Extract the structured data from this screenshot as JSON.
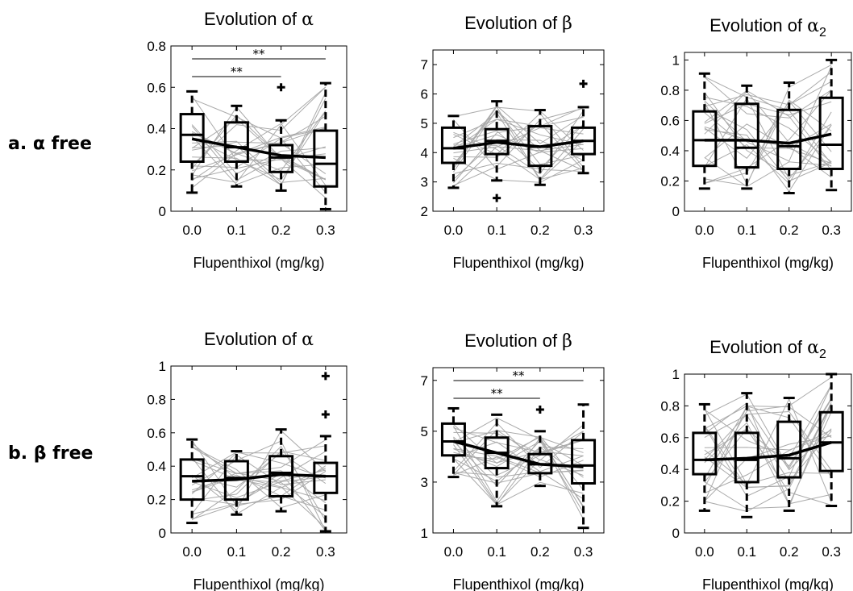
{
  "row_labels": [
    "a. α  free",
    "b. β free"
  ],
  "chart_data": [
    {
      "type": "box",
      "panel": "a-alpha",
      "title_main": "Evolution of ",
      "title_sym": "α",
      "title_sub": "",
      "xlabel": "Flupenthixol (mg/kg)",
      "categories": [
        "0.0",
        "0.1",
        "0.2",
        "0.3"
      ],
      "ylim": [
        0,
        0.8
      ],
      "yticks": [
        0,
        0.2,
        0.4,
        0.6,
        0.8
      ],
      "ytick_labels": [
        "0",
        "0.2",
        "0.4",
        "0.6",
        "0.8"
      ],
      "boxes": [
        {
          "whisker_low": 0.09,
          "q1": 0.24,
          "median": 0.37,
          "q3": 0.47,
          "whisker_high": 0.58,
          "outliers": []
        },
        {
          "whisker_low": 0.12,
          "q1": 0.24,
          "median": 0.31,
          "q3": 0.43,
          "whisker_high": 0.51,
          "outliers": []
        },
        {
          "whisker_low": 0.1,
          "q1": 0.19,
          "median": 0.26,
          "q3": 0.32,
          "whisker_high": 0.44,
          "outliers": [
            0.6
          ]
        },
        {
          "whisker_low": 0.01,
          "q1": 0.12,
          "median": 0.23,
          "q3": 0.39,
          "whisker_high": 0.62,
          "outliers": []
        }
      ],
      "mean_line": [
        0.35,
        0.31,
        0.27,
        0.26
      ],
      "significance": [
        {
          "from": 0,
          "to": 2,
          "label": "**"
        },
        {
          "from": 0,
          "to": 3,
          "label": "**"
        }
      ]
    },
    {
      "type": "box",
      "panel": "a-beta",
      "title_main": "Evolution of ",
      "title_sym": "β",
      "title_sub": "",
      "xlabel": "Flupenthixol (mg/kg)",
      "categories": [
        "0.0",
        "0.1",
        "0.2",
        "0.3"
      ],
      "ylim": [
        2,
        7.5
      ],
      "yticks": [
        2,
        3,
        4,
        5,
        6,
        7
      ],
      "ytick_labels": [
        "2",
        "3",
        "4",
        "5",
        "6",
        "7"
      ],
      "boxes": [
        {
          "whisker_low": 2.8,
          "q1": 3.65,
          "median": 4.15,
          "q3": 4.85,
          "whisker_high": 5.25,
          "outliers": []
        },
        {
          "whisker_low": 3.05,
          "q1": 3.95,
          "median": 4.4,
          "q3": 4.8,
          "whisker_high": 5.75,
          "outliers": [
            2.45
          ]
        },
        {
          "whisker_low": 2.9,
          "q1": 3.55,
          "median": 4.2,
          "q3": 4.9,
          "whisker_high": 5.45,
          "outliers": []
        },
        {
          "whisker_low": 3.3,
          "q1": 3.95,
          "median": 4.4,
          "q3": 4.85,
          "whisker_high": 5.55,
          "outliers": [
            6.35
          ]
        }
      ],
      "mean_line": [
        4.15,
        4.35,
        4.2,
        4.4
      ],
      "significance": []
    },
    {
      "type": "box",
      "panel": "a-alpha2",
      "title_main": "Evolution of ",
      "title_sym": "α",
      "title_sub": "2",
      "xlabel": "Flupenthixol (mg/kg)",
      "categories": [
        "0.0",
        "0.1",
        "0.2",
        "0.3"
      ],
      "ylim": [
        0,
        1.05
      ],
      "yticks": [
        0,
        0.2,
        0.4,
        0.6,
        0.8,
        1
      ],
      "ytick_labels": [
        "0",
        "0.2",
        "0.4",
        "0.6",
        "0.8",
        "1"
      ],
      "boxes": [
        {
          "whisker_low": 0.15,
          "q1": 0.3,
          "median": 0.47,
          "q3": 0.66,
          "whisker_high": 0.91,
          "outliers": []
        },
        {
          "whisker_low": 0.15,
          "q1": 0.29,
          "median": 0.42,
          "q3": 0.71,
          "whisker_high": 0.83,
          "outliers": []
        },
        {
          "whisker_low": 0.12,
          "q1": 0.28,
          "median": 0.43,
          "q3": 0.67,
          "whisker_high": 0.85,
          "outliers": []
        },
        {
          "whisker_low": 0.14,
          "q1": 0.28,
          "median": 0.44,
          "q3": 0.75,
          "whisker_high": 1.0,
          "outliers": []
        }
      ],
      "mean_line": [
        0.47,
        0.47,
        0.45,
        0.51
      ],
      "significance": []
    },
    {
      "type": "box",
      "panel": "b-alpha",
      "title_main": "Evolution of ",
      "title_sym": "α",
      "title_sub": "",
      "xlabel": "Flupenthixol (mg/kg)",
      "categories": [
        "0.0",
        "0.1",
        "0.2",
        "0.3"
      ],
      "ylim": [
        0,
        1
      ],
      "yticks": [
        0,
        0.2,
        0.4,
        0.6,
        0.8,
        1
      ],
      "ytick_labels": [
        "0",
        "0.2",
        "0.4",
        "0.6",
        "0.8",
        "1"
      ],
      "boxes": [
        {
          "whisker_low": 0.06,
          "q1": 0.2,
          "median": 0.34,
          "q3": 0.44,
          "whisker_high": 0.56,
          "outliers": []
        },
        {
          "whisker_low": 0.11,
          "q1": 0.2,
          "median": 0.33,
          "q3": 0.43,
          "whisker_high": 0.49,
          "outliers": []
        },
        {
          "whisker_low": 0.13,
          "q1": 0.22,
          "median": 0.36,
          "q3": 0.46,
          "whisker_high": 0.62,
          "outliers": []
        },
        {
          "whisker_low": 0.01,
          "q1": 0.24,
          "median": 0.34,
          "q3": 0.42,
          "whisker_high": 0.58,
          "outliers": [
            0.94,
            0.71
          ]
        }
      ],
      "mean_line": [
        0.31,
        0.32,
        0.35,
        0.34
      ],
      "significance": []
    },
    {
      "type": "box",
      "panel": "b-beta",
      "title_main": "Evolution of ",
      "title_sym": "β",
      "title_sub": "",
      "xlabel": "Flupenthixol (mg/kg)",
      "categories": [
        "0.0",
        "0.1",
        "0.2",
        "0.3"
      ],
      "ylim": [
        1,
        7.5
      ],
      "yticks": [
        1,
        3,
        5,
        7
      ],
      "ytick_labels": [
        "1",
        "3",
        "5",
        "7"
      ],
      "boxes": [
        {
          "whisker_low": 3.2,
          "q1": 4.05,
          "median": 4.6,
          "q3": 5.3,
          "whisker_high": 5.9,
          "outliers": []
        },
        {
          "whisker_low": 2.05,
          "q1": 3.55,
          "median": 4.15,
          "q3": 4.75,
          "whisker_high": 5.65,
          "outliers": []
        },
        {
          "whisker_low": 2.85,
          "q1": 3.35,
          "median": 3.7,
          "q3": 4.1,
          "whisker_high": 5.0,
          "outliers": [
            5.85
          ]
        },
        {
          "whisker_low": 1.2,
          "q1": 2.95,
          "median": 3.65,
          "q3": 4.65,
          "whisker_high": 6.05,
          "outliers": []
        }
      ],
      "mean_line": [
        4.6,
        4.15,
        3.7,
        3.6
      ],
      "significance": [
        {
          "from": 0,
          "to": 2,
          "label": "**"
        },
        {
          "from": 0,
          "to": 3,
          "label": "**"
        }
      ]
    },
    {
      "type": "box",
      "panel": "b-alpha2",
      "title_main": "Evolution of ",
      "title_sym": "α",
      "title_sub": "2",
      "xlabel": "Flupenthixol (mg/kg)",
      "categories": [
        "0.0",
        "0.1",
        "0.2",
        "0.3"
      ],
      "ylim": [
        0,
        1
      ],
      "yticks": [
        0,
        0.2,
        0.4,
        0.6,
        0.8,
        1
      ],
      "ytick_labels": [
        "0",
        "0.2",
        "0.4",
        "0.6",
        "0.8",
        "1"
      ],
      "boxes": [
        {
          "whisker_low": 0.14,
          "q1": 0.37,
          "median": 0.46,
          "q3": 0.63,
          "whisker_high": 0.81,
          "outliers": []
        },
        {
          "whisker_low": 0.1,
          "q1": 0.32,
          "median": 0.46,
          "q3": 0.63,
          "whisker_high": 0.88,
          "outliers": []
        },
        {
          "whisker_low": 0.14,
          "q1": 0.35,
          "median": 0.47,
          "q3": 0.7,
          "whisker_high": 0.85,
          "outliers": []
        },
        {
          "whisker_low": 0.17,
          "q1": 0.39,
          "median": 0.57,
          "q3": 0.76,
          "whisker_high": 1.0,
          "outliers": []
        }
      ],
      "mean_line": [
        0.46,
        0.47,
        0.49,
        0.57
      ],
      "significance": []
    }
  ]
}
